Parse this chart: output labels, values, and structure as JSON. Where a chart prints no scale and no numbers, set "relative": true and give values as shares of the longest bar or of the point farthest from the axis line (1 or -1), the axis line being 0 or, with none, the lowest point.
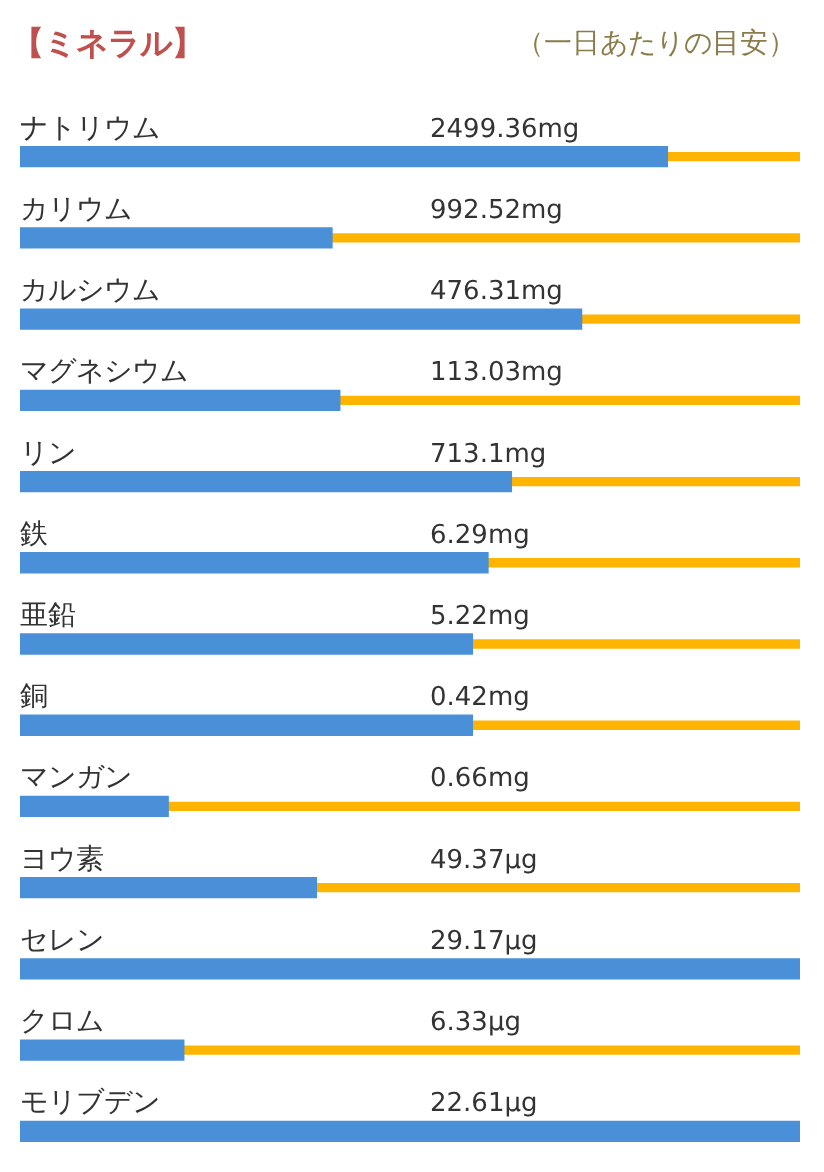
{
  "chart_data": {
    "type": "bar",
    "orientation": "horizontal",
    "relative": true,
    "stacked": true,
    "title": "【ミネラル】",
    "subtitle": "（一日あたりの目安）",
    "categories": [
      "ナトリウム",
      "カリウム",
      "カルシウム",
      "マグネシウム",
      "リン",
      "鉄",
      "亜鉛",
      "銅",
      "マンガン",
      "ヨウ素",
      "セレン",
      "クロム",
      "モリブデン"
    ],
    "series": [
      {
        "color": "#4a90d9",
        "values": [
          0.83,
          0.4,
          0.72,
          0.41,
          0.63,
          0.6,
          0.58,
          0.58,
          0.19,
          0.38,
          1,
          0.21,
          1
        ]
      },
      {
        "color": "#ffb400",
        "values": [
          0.17,
          0.6,
          0.28,
          0.59,
          0.37,
          0.4,
          0.42,
          0.42,
          0.81,
          0.62,
          0,
          0.79,
          0
        ]
      }
    ],
    "annotations": [
      {
        "text": "2499.36mg",
        "y": "ナトリウム"
      },
      {
        "text": "992.52mg",
        "y": "カリウム"
      },
      {
        "text": "476.31mg",
        "y": "カルシウム"
      },
      {
        "text": "113.03mg",
        "y": "マグネシウム"
      },
      {
        "text": "713.1mg",
        "y": "リン"
      },
      {
        "text": "6.29mg",
        "y": "鉄"
      },
      {
        "text": "5.22mg",
        "y": "亜鉛"
      },
      {
        "text": "0.42mg",
        "y": "銅"
      },
      {
        "text": "0.66mg",
        "y": "マンガン"
      },
      {
        "text": "49.37μg",
        "y": "ヨウ素"
      },
      {
        "text": "29.17μg",
        "y": "セレン"
      },
      {
        "text": "6.33μg",
        "y": "クロム"
      },
      {
        "text": "22.61μg",
        "y": "モリブデン"
      }
    ]
  }
}
